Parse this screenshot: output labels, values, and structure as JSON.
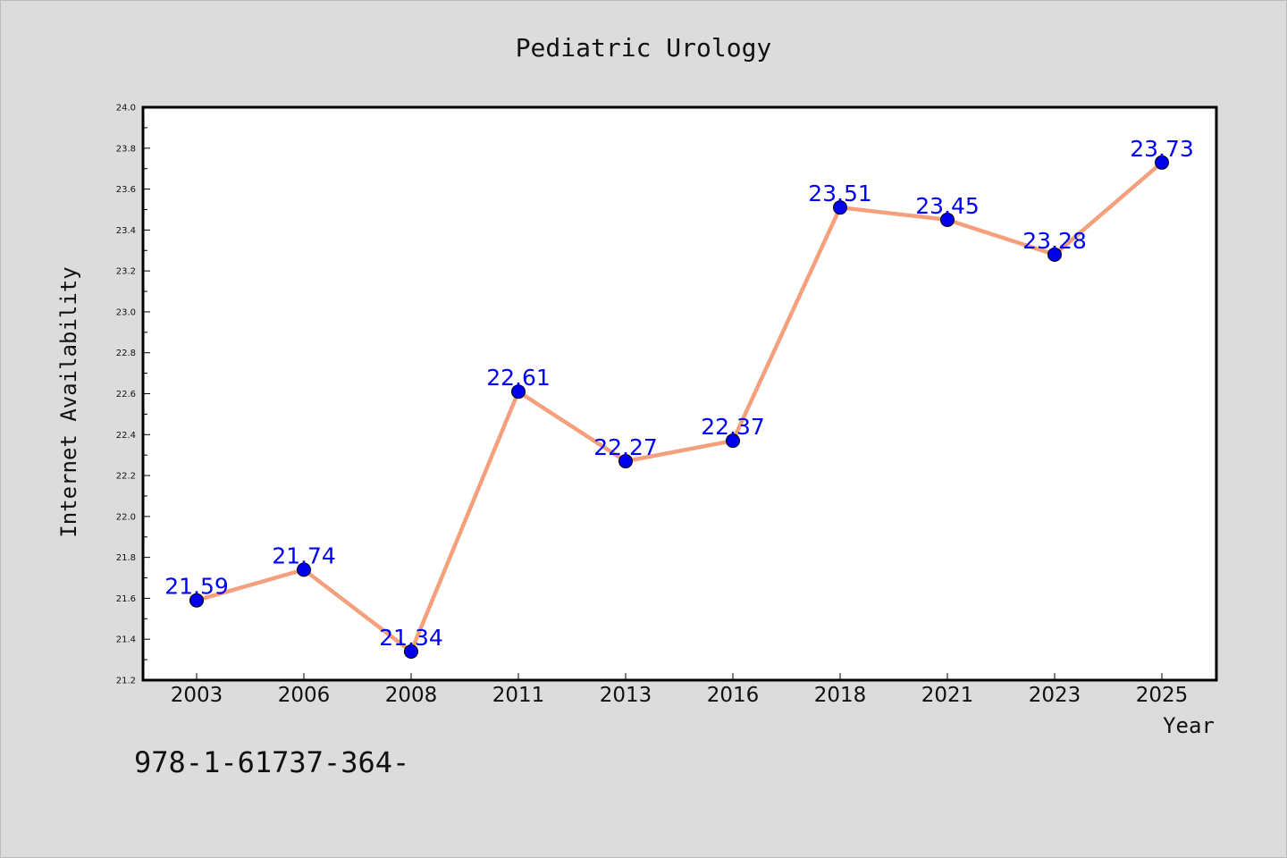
{
  "chart_data": {
    "type": "line",
    "title": "Pediatric Urology",
    "xlabel": "Year",
    "ylabel": "Internet Availability",
    "categories": [
      "2003",
      "2006",
      "2008",
      "2011",
      "2013",
      "2016",
      "2018",
      "2021",
      "2023",
      "2025"
    ],
    "series": [
      {
        "values": [
          21.59,
          21.74,
          21.34,
          22.61,
          22.27,
          22.37,
          23.51,
          23.45,
          23.28,
          23.73
        ]
      }
    ],
    "data_labels": [
      "21.59",
      "21.74",
      "21.34",
      "22.61",
      "22.27",
      "22.37",
      "23.51",
      "23.45",
      "23.28",
      "23.73"
    ],
    "ylim": [
      21.2,
      24.0
    ],
    "yticks": [
      "21.2",
      "21.4",
      "21.6",
      "21.8",
      "22.0",
      "22.2",
      "22.4",
      "22.6",
      "22.8",
      "23.0",
      "23.2",
      "23.4",
      "23.6",
      "23.8",
      "24.0"
    ],
    "grid": false,
    "colors": {
      "line": "#f4a07c",
      "marker": "#0000ee",
      "label": "#0000ff",
      "background": "#dcdcdc",
      "plot_background": "#ffffff"
    }
  },
  "footer_text": "978-1-61737-364-"
}
